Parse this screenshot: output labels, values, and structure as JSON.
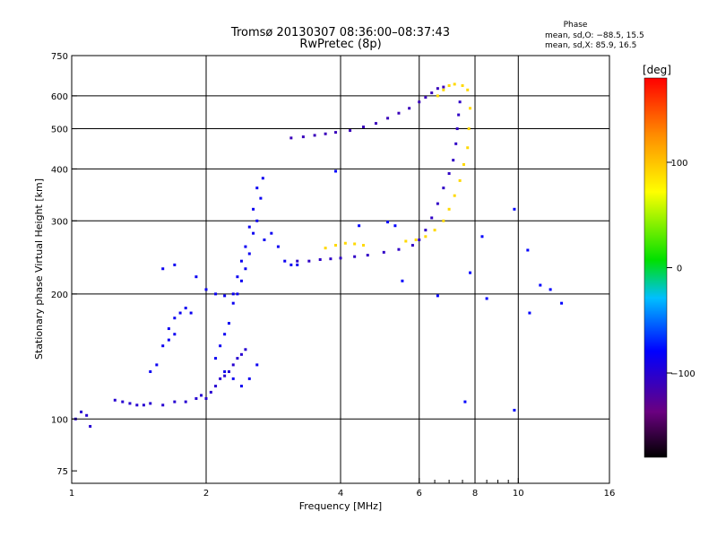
{
  "chart_data": {
    "type": "scatter",
    "title": "Tromsø 20130307 08:36:00–08:37:43",
    "subtitle": "RwPretec (8p)",
    "phase_stats": {
      "header": "Phase",
      "line_o": "mean, sd,O: −88.5, 15.5",
      "line_x": "mean, sd,X:  85.9, 16.5"
    },
    "xlabel": "Frequency [MHz]",
    "ylabel": "Stationary phase Virtual Height [km]",
    "xscale": "log",
    "yscale": "log",
    "xlim": [
      1,
      16
    ],
    "ylim": [
      70,
      750
    ],
    "xticks": [
      1,
      2,
      4,
      6,
      8,
      10,
      16
    ],
    "minor_xticks": [
      6.5,
      7,
      7.5,
      8.5,
      9,
      9.5
    ],
    "yticks": [
      75,
      100,
      200,
      300,
      400,
      500,
      600,
      750
    ],
    "grid_x": [
      2,
      4,
      6,
      8,
      10
    ],
    "grid_y": [
      100,
      200,
      300,
      400,
      500,
      600
    ],
    "grid": true,
    "colorbar": {
      "label": "[deg]",
      "range": [
        -180,
        180
      ],
      "ticks": [
        100,
        0,
        -100
      ],
      "colors": [
        "#000000",
        "#6a0080",
        "#0000ff",
        "#00bfff",
        "#00e000",
        "#ffff00",
        "#ff8c00",
        "#ff0000"
      ]
    },
    "series": [
      {
        "trace": "low-echo",
        "phase": -100,
        "points": [
          [
            1.02,
            100
          ],
          [
            1.05,
            104
          ],
          [
            1.08,
            102
          ],
          [
            1.1,
            96
          ],
          [
            1.25,
            111
          ],
          [
            1.3,
            110
          ],
          [
            1.35,
            109
          ],
          [
            1.4,
            108
          ],
          [
            1.45,
            108
          ],
          [
            1.5,
            109
          ],
          [
            1.6,
            108
          ],
          [
            1.7,
            110
          ],
          [
            1.8,
            110
          ],
          [
            1.9,
            112
          ],
          [
            1.95,
            114
          ],
          [
            2.0,
            112
          ],
          [
            2.05,
            116
          ],
          [
            2.1,
            120
          ],
          [
            2.15,
            125
          ],
          [
            2.2,
            127
          ],
          [
            2.25,
            130
          ],
          [
            2.3,
            135
          ],
          [
            2.35,
            140
          ],
          [
            2.4,
            143
          ],
          [
            2.45,
            147
          ]
        ]
      },
      {
        "trace": "e-region-column",
        "phase": -85,
        "points": [
          [
            1.6,
            150
          ],
          [
            1.65,
            155
          ],
          [
            1.7,
            160
          ],
          [
            1.65,
            165
          ],
          [
            1.7,
            175
          ],
          [
            1.75,
            180
          ],
          [
            1.55,
            135
          ],
          [
            1.5,
            130
          ],
          [
            1.6,
            230
          ],
          [
            1.7,
            235
          ],
          [
            1.8,
            185
          ],
          [
            1.85,
            180
          ],
          [
            1.9,
            220
          ],
          [
            2.0,
            205
          ],
          [
            2.1,
            200
          ],
          [
            2.2,
            198
          ],
          [
            2.3,
            200
          ],
          [
            2.35,
            200
          ],
          [
            2.4,
            215
          ],
          [
            2.45,
            230
          ],
          [
            2.5,
            250
          ],
          [
            2.55,
            280
          ],
          [
            2.6,
            300
          ],
          [
            2.65,
            340
          ],
          [
            2.68,
            380
          ],
          [
            2.6,
            360
          ],
          [
            2.55,
            320
          ],
          [
            2.5,
            290
          ],
          [
            2.45,
            260
          ],
          [
            2.4,
            240
          ],
          [
            2.35,
            220
          ],
          [
            2.3,
            190
          ],
          [
            2.25,
            170
          ],
          [
            2.2,
            160
          ],
          [
            2.15,
            150
          ],
          [
            2.1,
            140
          ],
          [
            2.2,
            130
          ],
          [
            2.3,
            125
          ],
          [
            2.4,
            120
          ],
          [
            2.5,
            125
          ],
          [
            2.6,
            135
          ],
          [
            2.7,
            270
          ],
          [
            2.8,
            280
          ],
          [
            2.9,
            260
          ],
          [
            3.0,
            240
          ],
          [
            3.1,
            235
          ],
          [
            3.2,
            235
          ]
        ]
      },
      {
        "trace": "f-o-trace",
        "phase": -105,
        "points": [
          [
            3.2,
            240
          ],
          [
            3.4,
            240
          ],
          [
            3.6,
            242
          ],
          [
            3.8,
            243
          ],
          [
            4.0,
            244
          ],
          [
            4.3,
            246
          ],
          [
            4.6,
            248
          ],
          [
            5.0,
            252
          ],
          [
            5.4,
            256
          ],
          [
            5.8,
            262
          ],
          [
            6.0,
            270
          ],
          [
            6.2,
            285
          ],
          [
            6.4,
            305
          ],
          [
            6.6,
            330
          ],
          [
            6.8,
            360
          ],
          [
            7.0,
            390
          ],
          [
            7.15,
            420
          ],
          [
            7.25,
            460
          ],
          [
            7.3,
            500
          ],
          [
            7.35,
            540
          ],
          [
            7.4,
            580
          ]
        ]
      },
      {
        "trace": "f-o-upper",
        "phase": -110,
        "points": [
          [
            3.1,
            475
          ],
          [
            3.3,
            478
          ],
          [
            3.5,
            482
          ],
          [
            3.7,
            486
          ],
          [
            3.9,
            490
          ],
          [
            4.2,
            495
          ],
          [
            4.5,
            505
          ],
          [
            4.8,
            515
          ],
          [
            5.1,
            530
          ],
          [
            5.4,
            545
          ],
          [
            5.7,
            560
          ],
          [
            6.0,
            580
          ],
          [
            6.2,
            595
          ],
          [
            6.4,
            610
          ],
          [
            6.6,
            625
          ],
          [
            6.8,
            630
          ]
        ]
      },
      {
        "trace": "x-trace",
        "phase": 90,
        "points": [
          [
            3.7,
            258
          ],
          [
            3.9,
            262
          ],
          [
            4.1,
            265
          ],
          [
            4.3,
            264
          ],
          [
            4.5,
            262
          ],
          [
            5.6,
            268
          ],
          [
            5.9,
            270
          ],
          [
            6.2,
            275
          ],
          [
            6.5,
            285
          ],
          [
            6.8,
            300
          ],
          [
            7.0,
            320
          ],
          [
            7.2,
            345
          ],
          [
            7.4,
            375
          ],
          [
            7.55,
            410
          ],
          [
            7.7,
            450
          ],
          [
            7.75,
            500
          ],
          [
            7.8,
            560
          ],
          [
            7.7,
            620
          ],
          [
            7.5,
            635
          ],
          [
            7.2,
            640
          ],
          [
            7.0,
            635
          ],
          [
            6.8,
            620
          ],
          [
            6.6,
            600
          ]
        ]
      },
      {
        "trace": "scattered",
        "phase": -80,
        "points": [
          [
            3.9,
            395
          ],
          [
            4.4,
            292
          ],
          [
            5.1,
            298
          ],
          [
            5.3,
            292
          ],
          [
            5.5,
            215
          ],
          [
            6.6,
            198
          ],
          [
            7.6,
            110
          ],
          [
            7.8,
            225
          ],
          [
            8.3,
            275
          ],
          [
            8.5,
            195
          ],
          [
            9.8,
            320
          ],
          [
            9.8,
            105
          ],
          [
            10.5,
            255
          ],
          [
            10.6,
            180
          ],
          [
            11.2,
            210
          ],
          [
            11.8,
            205
          ],
          [
            12.5,
            190
          ]
        ]
      }
    ]
  }
}
